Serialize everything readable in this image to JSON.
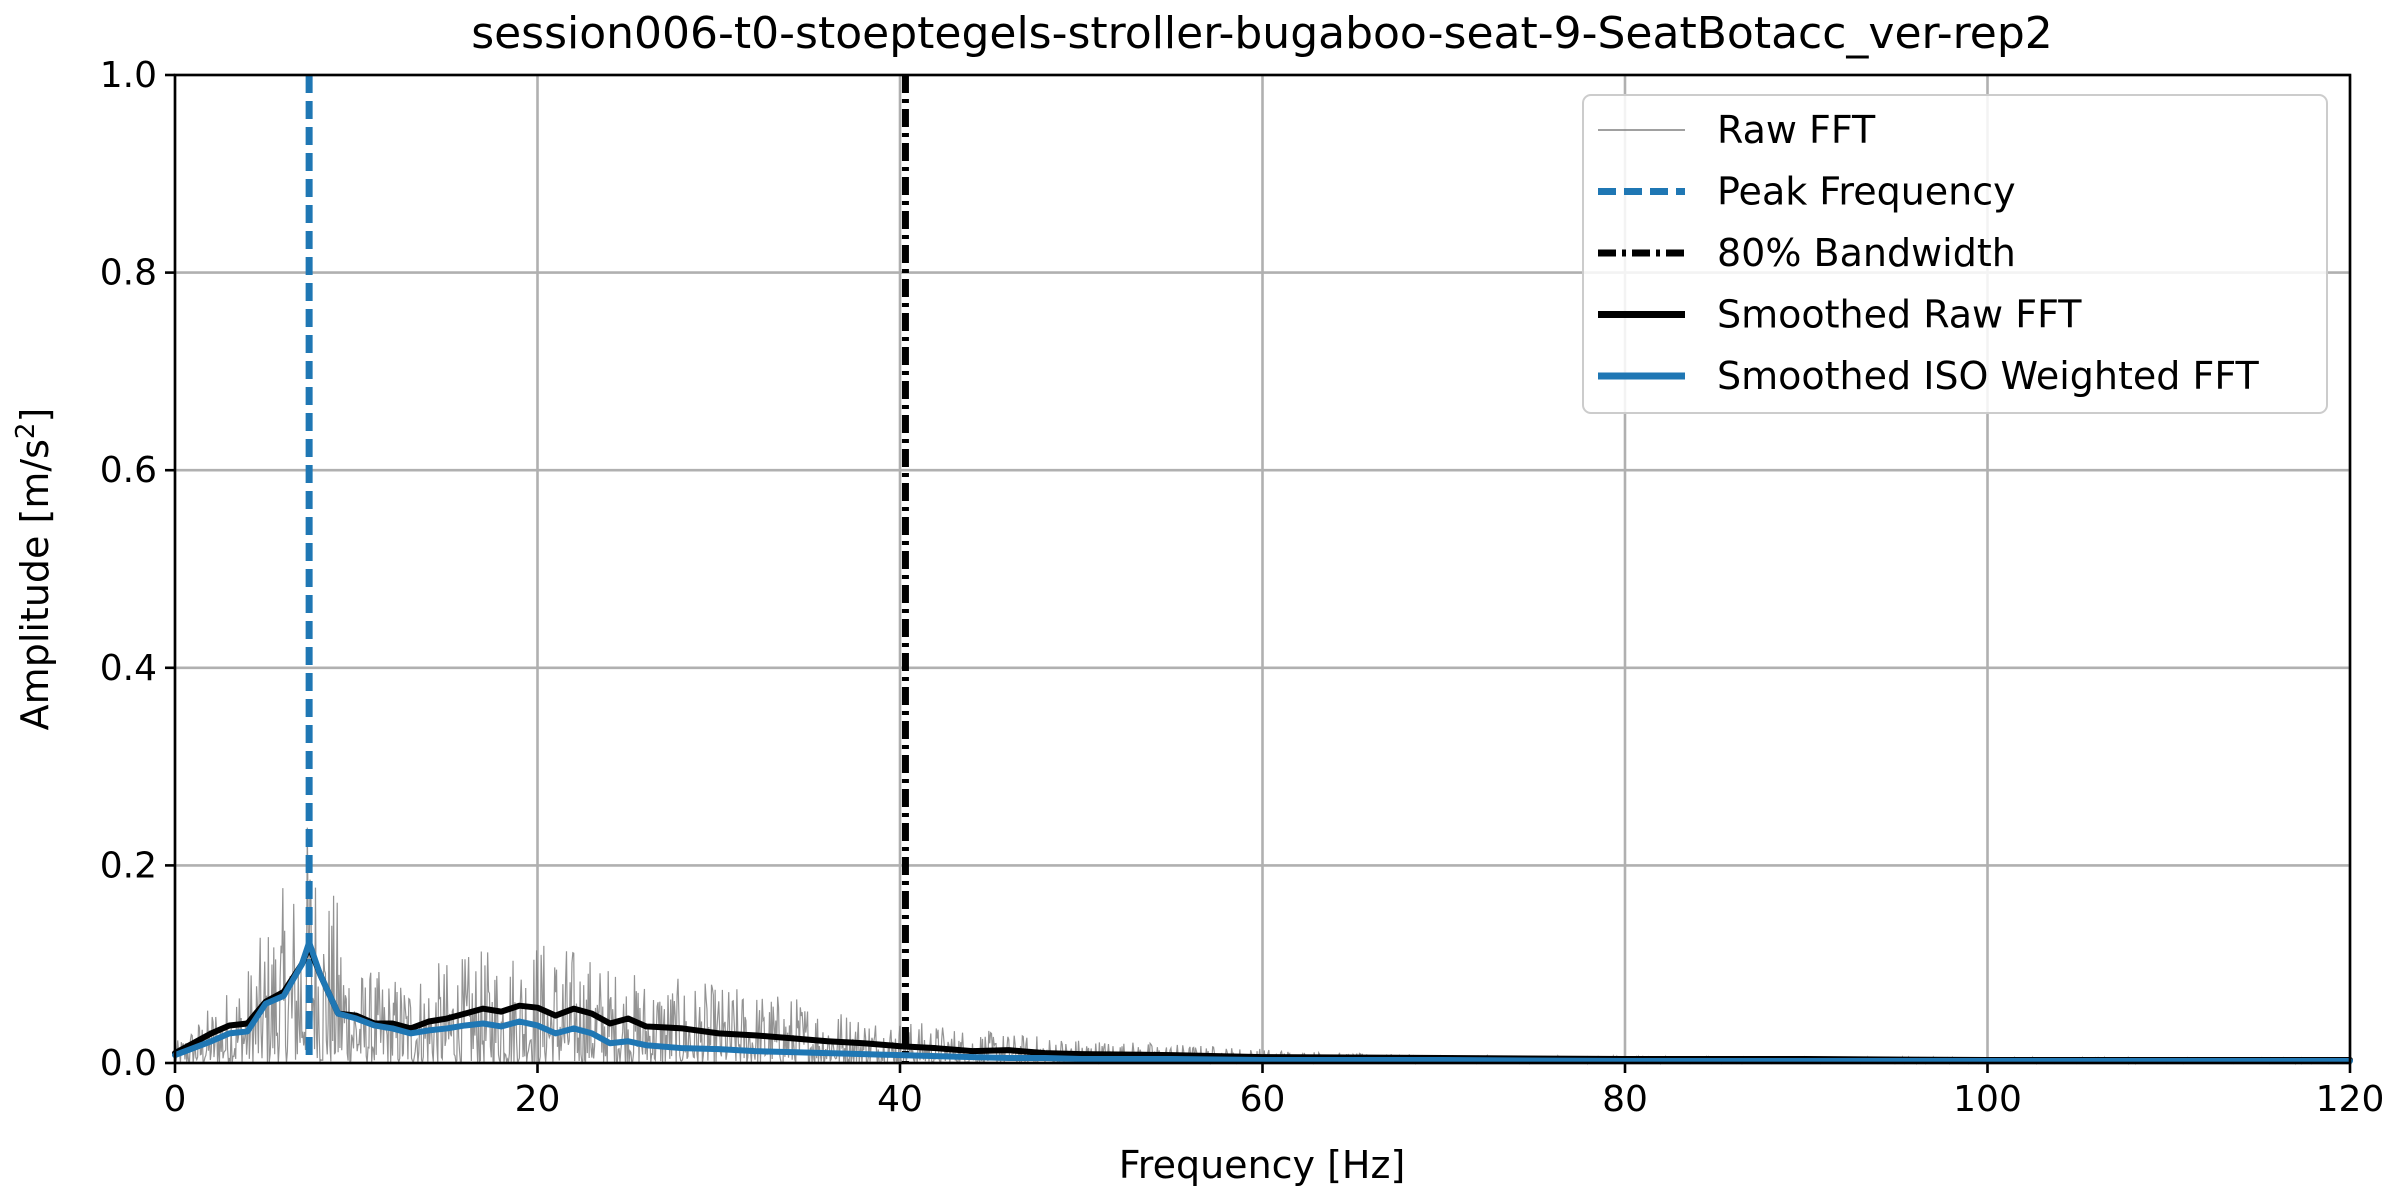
{
  "chart_data": {
    "type": "line",
    "title": "session006-t0-stoeptegels-stroller-bugaboo-seat-9-SeatBotacc_ver-rep2",
    "xlabel": "Frequency [Hz]",
    "ylabel": "Amplitude [m/s",
    "ylabel_sup": "2",
    "ylabel_end": "]",
    "xlim": [
      0,
      120
    ],
    "ylim": [
      0,
      1.0
    ],
    "grid": true,
    "legend_position": "top-right",
    "x_ticks": [
      0,
      20,
      40,
      60,
      80,
      100,
      120
    ],
    "x_tick_labels": [
      "0",
      "20",
      "40",
      "60",
      "80",
      "100",
      "120"
    ],
    "y_ticks": [
      0,
      0.2,
      0.4,
      0.6,
      0.8,
      1.0
    ],
    "y_tick_labels": [
      "0.0",
      "0.2",
      "0.4",
      "0.6",
      "0.8",
      "1.0"
    ],
    "vlines": [
      {
        "name": "Peak Frequency",
        "x": 7.4,
        "color": "#1f77b4",
        "style": "dashed"
      },
      {
        "name": "80% Bandwidth",
        "x": 40.3,
        "color": "#000000",
        "style": "dashdot"
      }
    ],
    "series": [
      {
        "name": "Raw FFT",
        "color": "#808080",
        "style": "thin",
        "envelope": {
          "x": [
            0,
            1,
            2,
            3,
            4,
            5,
            6,
            7,
            7.4,
            8,
            9,
            10,
            12,
            14,
            16,
            18,
            20,
            22,
            24,
            26,
            28,
            30,
            32,
            34,
            36,
            38,
            40,
            42,
            44,
            46,
            48,
            50,
            55,
            60,
            65,
            70,
            80,
            90,
            100,
            110,
            120
          ],
          "upper": [
            0.02,
            0.04,
            0.06,
            0.08,
            0.1,
            0.14,
            0.18,
            0.2,
            0.27,
            0.19,
            0.17,
            0.1,
            0.09,
            0.1,
            0.11,
            0.12,
            0.13,
            0.12,
            0.1,
            0.09,
            0.085,
            0.08,
            0.075,
            0.07,
            0.06,
            0.05,
            0.045,
            0.04,
            0.035,
            0.03,
            0.028,
            0.025,
            0.02,
            0.015,
            0.01,
            0.008,
            0.007,
            0.006,
            0.006,
            0.005,
            0.005
          ],
          "lower": [
            0,
            0,
            0,
            0,
            0,
            0,
            0,
            0,
            0.02,
            0,
            0,
            0,
            0,
            0,
            0,
            0,
            0,
            0,
            0,
            0,
            0,
            0,
            0,
            0,
            0,
            0,
            0,
            0,
            0,
            0,
            0,
            0,
            0,
            0,
            0,
            0,
            0,
            0,
            0,
            0,
            0
          ]
        }
      },
      {
        "name": "Peak Frequency",
        "color": "#1f77b4",
        "style": "dashed"
      },
      {
        "name": "80% Bandwidth",
        "color": "#000000",
        "style": "dashdot"
      },
      {
        "name": "Smoothed Raw FFT",
        "color": "#000000",
        "style": "solid",
        "x": [
          0,
          1,
          2,
          3,
          4,
          5,
          6,
          7,
          7.4,
          8,
          9,
          10,
          11,
          12,
          13,
          14,
          15,
          16,
          17,
          18,
          19,
          20,
          21,
          22,
          23,
          24,
          25,
          26,
          27,
          28,
          30,
          32,
          34,
          36,
          38,
          40,
          42,
          44,
          46,
          48,
          50,
          55,
          60,
          70,
          80,
          90,
          100,
          110,
          120
        ],
        "y": [
          0.01,
          0.02,
          0.03,
          0.038,
          0.04,
          0.062,
          0.072,
          0.1,
          0.118,
          0.09,
          0.05,
          0.048,
          0.04,
          0.04,
          0.035,
          0.042,
          0.045,
          0.05,
          0.055,
          0.052,
          0.058,
          0.056,
          0.048,
          0.055,
          0.05,
          0.04,
          0.045,
          0.037,
          0.036,
          0.035,
          0.03,
          0.028,
          0.025,
          0.022,
          0.02,
          0.017,
          0.015,
          0.012,
          0.013,
          0.01,
          0.009,
          0.008,
          0.006,
          0.005,
          0.004,
          0.004,
          0.003,
          0.003,
          0.003
        ]
      },
      {
        "name": "Smoothed ISO Weighted FFT",
        "color": "#1f77b4",
        "style": "solid",
        "x": [
          0,
          1,
          2,
          3,
          4,
          5,
          6,
          7,
          7.4,
          8,
          9,
          10,
          11,
          12,
          13,
          14,
          15,
          16,
          17,
          18,
          19,
          20,
          21,
          22,
          23,
          24,
          25,
          26,
          28,
          30,
          32,
          34,
          36,
          38,
          40,
          42,
          44,
          46,
          48,
          50,
          55,
          60,
          70,
          80,
          90,
          100,
          110,
          120
        ],
        "y": [
          0.008,
          0.015,
          0.022,
          0.03,
          0.032,
          0.06,
          0.068,
          0.1,
          0.122,
          0.09,
          0.05,
          0.045,
          0.038,
          0.035,
          0.03,
          0.033,
          0.035,
          0.038,
          0.04,
          0.037,
          0.042,
          0.038,
          0.03,
          0.035,
          0.03,
          0.02,
          0.022,
          0.018,
          0.015,
          0.014,
          0.012,
          0.011,
          0.01,
          0.009,
          0.008,
          0.007,
          0.006,
          0.005,
          0.005,
          0.004,
          0.004,
          0.003,
          0.003,
          0.002,
          0.002,
          0.002,
          0.002,
          0.002
        ]
      }
    ]
  }
}
